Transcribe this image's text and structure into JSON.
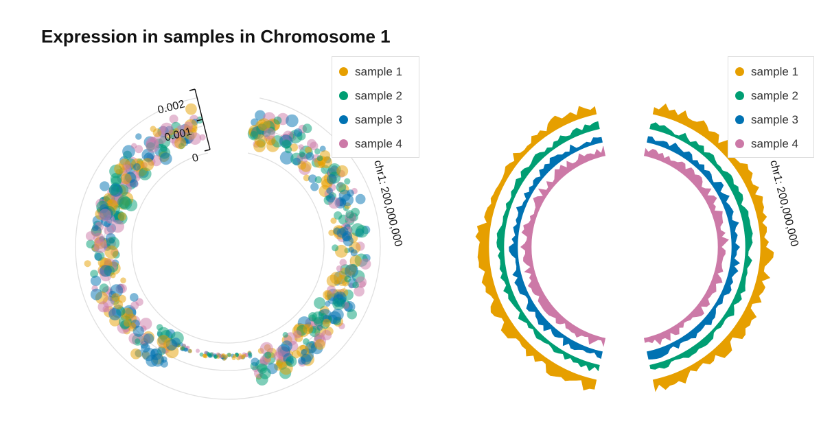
{
  "title": "Expression in samples in Chromosome 1",
  "colors": {
    "sample1": "#E69F00",
    "sample2": "#009E73",
    "sample3": "#0072B2",
    "sample4": "#CC79A7",
    "grid": "#e0e0e0"
  },
  "chart_data": [
    {
      "type": "scatter",
      "layout": "circular",
      "title": "Expression in samples in Chromosome 1",
      "radial_axis": {
        "ticks": [
          "0",
          "0.001",
          "0.002"
        ],
        "range": [
          0,
          0.002
        ]
      },
      "angular_label": "chr1: 200,000,000",
      "legend": {
        "placement": "top-right",
        "entries": [
          "sample 1",
          "sample 2",
          "sample 3",
          "sample 4"
        ]
      },
      "series": [
        {
          "name": "sample 1",
          "color": "#E69F00"
        },
        {
          "name": "sample 2",
          "color": "#009E73"
        },
        {
          "name": "sample 3",
          "color": "#0072B2"
        },
        {
          "name": "sample 4",
          "color": "#CC79A7"
        }
      ],
      "grid": true
    },
    {
      "type": "area",
      "layout": "circular",
      "angular_label": "chr1: 200,000,000",
      "legend": {
        "placement": "top-right",
        "entries": [
          "sample 1",
          "sample 2",
          "sample 3",
          "sample 4"
        ]
      },
      "series": [
        {
          "name": "sample 1",
          "color": "#E69F00"
        },
        {
          "name": "sample 2",
          "color": "#009E73"
        },
        {
          "name": "sample 3",
          "color": "#0072B2"
        },
        {
          "name": "sample 4",
          "color": "#CC79A7"
        }
      ],
      "grid": false
    }
  ]
}
